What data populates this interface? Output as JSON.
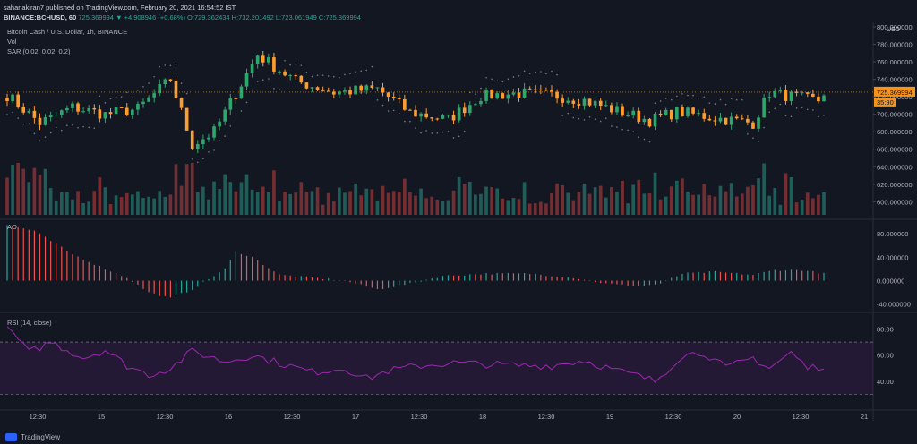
{
  "header": {
    "published": "sahanakiran7 published on TradingView.com, February 20, 2021 16:54:52 IST",
    "symbol": "BINANCE:BCHUSD, 60",
    "ohlc": "725.369994 ▼ +4.908946 (+0.68%) O:729.362434 H:732.201492 L:723.061949 C:725.369994"
  },
  "legend": {
    "title": "Bitcoin Cash / U.S. Dollar, 1h, BINANCE",
    "vol": "Vol",
    "sar": "SAR (0.02, 0.02, 0.2)",
    "ao": "AO",
    "rsi": "RSI (14, close)"
  },
  "brand": "TradingView",
  "colors": {
    "up": "#26a69a",
    "down": "#ef5350",
    "upCandle": "#2fa56e",
    "downCandle": "#ff9c2e",
    "rsi": "#9c27b0",
    "price_label": "#f7931a"
  },
  "chart_data": [
    {
      "type": "candlestick",
      "currency": "USD",
      "ylim": [
        585,
        800
      ],
      "y_ticks": [
        600,
        620,
        640,
        660,
        680,
        700,
        720,
        740,
        760,
        780,
        800
      ],
      "y_tick_labels": [
        "600.000000",
        "620.000000",
        "640.000000",
        "660.000000",
        "680.000000",
        "700.000000",
        "720.000000",
        "740.000000",
        "760.000000",
        "780.000000",
        "800.000000"
      ],
      "last_price_label": "725.369994",
      "countdown_label": "35:90",
      "x_tick_labels": [
        "12:30",
        "15",
        "12:30",
        "16",
        "12:30",
        "17",
        "12:30",
        "18",
        "12:30",
        "19",
        "12:30",
        "20",
        "12:30",
        "21"
      ],
      "close_anchors": [
        [
          0,
          722
        ],
        [
          6,
          690
        ],
        [
          12,
          708
        ],
        [
          18,
          700
        ],
        [
          24,
          706
        ],
        [
          30,
          740
        ],
        [
          34,
          665
        ],
        [
          38,
          680
        ],
        [
          46,
          768
        ],
        [
          53,
          738
        ],
        [
          60,
          725
        ],
        [
          68,
          729
        ],
        [
          74,
          702
        ],
        [
          81,
          694
        ],
        [
          87,
          721
        ],
        [
          94,
          724
        ],
        [
          100,
          722
        ],
        [
          106,
          716
        ],
        [
          112,
          704
        ],
        [
          118,
          693
        ],
        [
          123,
          703
        ],
        [
          126,
          700
        ],
        [
          131,
          695
        ],
        [
          137,
          690
        ],
        [
          140,
          725
        ],
        [
          147,
          717
        ],
        [
          149,
          716
        ],
        [
          150,
          725
        ]
      ]
    },
    {
      "type": "bar",
      "name": "AO",
      "ylim": [
        -45,
        100
      ],
      "y_ticks": [
        -40,
        0,
        40,
        80
      ],
      "y_tick_labels": [
        "-40.000000",
        "0.000000",
        "40.000000",
        "80.000000"
      ],
      "anchors": [
        [
          0,
          95
        ],
        [
          5,
          85
        ],
        [
          12,
          45
        ],
        [
          18,
          20
        ],
        [
          22,
          5
        ],
        [
          26,
          -20
        ],
        [
          30,
          -30
        ],
        [
          34,
          -15
        ],
        [
          40,
          20
        ],
        [
          42,
          50
        ],
        [
          45,
          40
        ],
        [
          50,
          10
        ],
        [
          56,
          5
        ],
        [
          62,
          0
        ],
        [
          68,
          -15
        ],
        [
          74,
          -5
        ],
        [
          80,
          8
        ],
        [
          88,
          12
        ],
        [
          96,
          12
        ],
        [
          104,
          5
        ],
        [
          110,
          -5
        ],
        [
          116,
          -10
        ],
        [
          120,
          -5
        ],
        [
          124,
          12
        ],
        [
          130,
          15
        ],
        [
          137,
          10
        ],
        [
          141,
          18
        ],
        [
          146,
          18
        ],
        [
          150,
          12
        ]
      ]
    },
    {
      "type": "line",
      "name": "RSI",
      "ylim": [
        20,
        90
      ],
      "y_ticks": [
        40,
        60,
        80
      ],
      "y_tick_labels": [
        "40.00",
        "60.00",
        "80.00"
      ],
      "band": [
        30,
        70
      ],
      "anchors": [
        [
          0,
          82
        ],
        [
          4,
          62
        ],
        [
          8,
          70
        ],
        [
          14,
          58
        ],
        [
          18,
          64
        ],
        [
          22,
          52
        ],
        [
          26,
          45
        ],
        [
          30,
          50
        ],
        [
          34,
          63
        ],
        [
          40,
          55
        ],
        [
          45,
          60
        ],
        [
          50,
          54
        ],
        [
          56,
          47
        ],
        [
          62,
          50
        ],
        [
          66,
          42
        ],
        [
          70,
          48
        ],
        [
          76,
          52
        ],
        [
          82,
          54
        ],
        [
          88,
          53
        ],
        [
          94,
          52
        ],
        [
          100,
          52
        ],
        [
          106,
          56
        ],
        [
          112,
          48
        ],
        [
          116,
          44
        ],
        [
          119,
          40
        ],
        [
          124,
          60
        ],
        [
          128,
          62
        ],
        [
          132,
          50
        ],
        [
          137,
          58
        ],
        [
          140,
          50
        ],
        [
          144,
          62
        ],
        [
          147,
          50
        ],
        [
          150,
          52
        ]
      ]
    }
  ]
}
